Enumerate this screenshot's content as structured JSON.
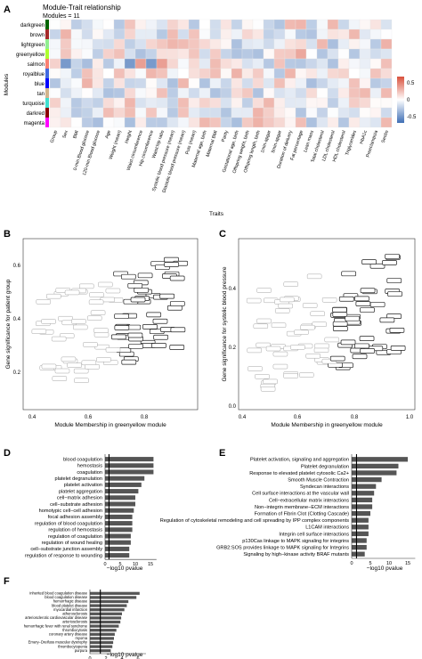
{
  "panels": {
    "A": {
      "letter": "A",
      "title": "Module-Trait relationship",
      "subtitle": "Modules = 11",
      "ylabel": "Modules",
      "xlabel": "Traits",
      "modules": [
        {
          "name": "darkgreen",
          "color": "#006400"
        },
        {
          "name": "brown",
          "color": "#a52a2a"
        },
        {
          "name": "lightgreen",
          "color": "#90ee90"
        },
        {
          "name": "greenyellow",
          "color": "#adff2f"
        },
        {
          "name": "salmon",
          "color": "#fa8072"
        },
        {
          "name": "royalblue",
          "color": "#4169e1"
        },
        {
          "name": "blue",
          "color": "#0000ff"
        },
        {
          "name": "tan",
          "color": "#d2b48c"
        },
        {
          "name": "turquoise",
          "color": "#40e0d0"
        },
        {
          "name": "darkred",
          "color": "#8b0000"
        },
        {
          "name": "magenta",
          "color": "#ff00ff"
        }
      ],
      "traits": [
        "Group",
        "Sex",
        "BMI",
        "0-min Blood glucose",
        "120-min Blood glucose",
        "Age",
        "Weight (mean)",
        "Height",
        "Waist circumference",
        "Hip circumference",
        "Waist:hip ratio",
        "Systolic blood pressure (mean)",
        "Diastolic blood pressure (mean)",
        "Puls (mean)",
        "Maternal age, birth",
        "Maternal BMI",
        "Parity",
        "Gestational age, birth",
        "Offspring weight, birth",
        "Offspring length, birth",
        "1min-apgar",
        "5min-apgar",
        "Duration of delivery",
        "Fat percentage",
        "Lean mass",
        "Total cholesterol",
        "LDL cholesterol",
        "HDL cholesterol",
        "Triglycerides",
        "HbA1c",
        "Preeclampsia",
        "Sectio"
      ],
      "legend_ticks": [
        "0.5",
        "0",
        "-0.5"
      ],
      "color_high": "#d9513c",
      "color_mid": "#ffffff",
      "color_low": "#3f6fb5"
    },
    "B": {
      "letter": "B",
      "xlabel": "Module Membership in greenyellow module",
      "ylabel": "Gene significance for patient group",
      "xticks": [
        "0.4",
        "0.6",
        "0.8"
      ],
      "yticks": [
        "0.2",
        "0.4",
        "0.6"
      ]
    },
    "C": {
      "letter": "C",
      "xlabel": "Module Membership in greenyellow module",
      "ylabel": "Gene significance for systolic blood pressure",
      "xticks": [
        "0.4",
        "0.6",
        "0.8",
        "1.0"
      ],
      "yticks": [
        "0.0",
        "0.2",
        "0.4"
      ]
    },
    "D": {
      "letter": "D",
      "xlabel": "−log10 pvalue",
      "xticks": [
        "0",
        "5",
        "10",
        "15"
      ],
      "terms": [
        {
          "label": "blood coagulation",
          "value": 16
        },
        {
          "label": "hemostasis",
          "value": 16
        },
        {
          "label": "coagulation",
          "value": 16
        },
        {
          "label": "platelet degranulation",
          "value": 13
        },
        {
          "label": "platelet activation",
          "value": 12
        },
        {
          "label": "platelet aggregation",
          "value": 11
        },
        {
          "label": "cell−matrix adhesion",
          "value": 10
        },
        {
          "label": "cell−substrate adhesion",
          "value": 10
        },
        {
          "label": "homotypic cell−cell adhesion",
          "value": 9.5
        },
        {
          "label": "focal adhesion assembly",
          "value": 9
        },
        {
          "label": "regulation of blood coagulation",
          "value": 9
        },
        {
          "label": "regulation of hemostasis",
          "value": 9
        },
        {
          "label": "regulation of coagulation",
          "value": 8.5
        },
        {
          "label": "regulation of wound healing",
          "value": 8.5
        },
        {
          "label": "cell−substrate junction assembly",
          "value": 8
        },
        {
          "label": "regulation of response to wounding",
          "value": 8
        }
      ]
    },
    "E": {
      "letter": "E",
      "xlabel": "−log10 pvalue",
      "xticks": [
        "0",
        "5",
        "10",
        "15"
      ],
      "terms": [
        {
          "label": "Platelet activation, signaling and aggregation",
          "value": 15
        },
        {
          "label": "Platelet degranulation",
          "value": 12.5
        },
        {
          "label": "Response to elevated platelet cytosolic Ca2+",
          "value": 12
        },
        {
          "label": "Smooth Muscle Contraction",
          "value": 8
        },
        {
          "label": "Syndecan interactions",
          "value": 6.5
        },
        {
          "label": "Cell surface interactions at the vascular wall",
          "value": 6
        },
        {
          "label": "Cell−extracellular matrix interactions",
          "value": 5.5
        },
        {
          "label": "Non−integrin membrane−ECM interactions",
          "value": 5.5
        },
        {
          "label": "Formation of Fibrin Clot (Clotting Cascade)",
          "value": 5
        },
        {
          "label": "Regulation of cytoskeletal remodeling and cell spreading by IPP complex components",
          "value": 4.5
        },
        {
          "label": "L1CAM interactions",
          "value": 4.5
        },
        {
          "label": "Integrin cell surface interactions",
          "value": 4.5
        },
        {
          "label": "p130Cas linkage to MAPK signaling for integrins",
          "value": 4
        },
        {
          "label": "GRB2:SOS provides linkage to MAPK signaling for Integrins",
          "value": 4
        },
        {
          "label": "Signaling by high−kinase activity BRAF mutants",
          "value": 3.5
        }
      ]
    },
    "F": {
      "letter": "F",
      "xlabel": "−log10 pvalue",
      "xticks": [
        "0",
        "2",
        "4",
        "6"
      ],
      "terms": [
        {
          "label": "inherited blood coagulation disease",
          "value": 6.2
        },
        {
          "label": "blood coagulation disease",
          "value": 5.8
        },
        {
          "label": "hemorrhagic disease",
          "value": 4.8
        },
        {
          "label": "blood platelet disease",
          "value": 4.6
        },
        {
          "label": "myocardial infarction",
          "value": 4.3
        },
        {
          "label": "atherosclerosis",
          "value": 4.0
        },
        {
          "label": "arteriosclerotic cardiovascular disease",
          "value": 3.9
        },
        {
          "label": "arteriosclerosis",
          "value": 3.8
        },
        {
          "label": "hemorrhagic fever with renal syndrome",
          "value": 3.6
        },
        {
          "label": "thrombocytosis",
          "value": 3.3
        },
        {
          "label": "coronary artery disease",
          "value": 3.1
        },
        {
          "label": "myoma",
          "value": 3.0
        },
        {
          "label": "Emery−Dreifuss muscular dystrophy",
          "value": 2.9
        },
        {
          "label": "thrombocytopenia",
          "value": 2.8
        },
        {
          "label": "purpura",
          "value": 2.6
        }
      ]
    }
  }
}
